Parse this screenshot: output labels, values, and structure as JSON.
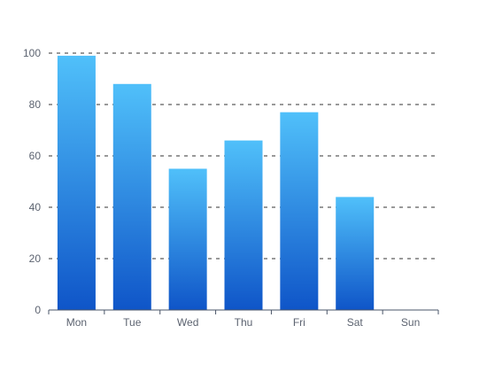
{
  "chart_data": {
    "type": "bar",
    "categories": [
      "Mon",
      "Tue",
      "Wed",
      "Thu",
      "Fri",
      "Sat",
      "Sun"
    ],
    "values": [
      99,
      88,
      55,
      66,
      77,
      44,
      0
    ],
    "title": "",
    "xlabel": "",
    "ylabel": "",
    "ylim": [
      0,
      100
    ],
    "yticks": [
      0,
      20,
      40,
      60,
      80,
      100
    ],
    "grid": "horizontal-dashed",
    "legend": "none",
    "colors": {
      "bar_top": "#50c0fa",
      "bar_bottom": "#0f55c8",
      "grid": "#333333",
      "axis": "#4a5568",
      "tick_text": "#5c6370"
    }
  }
}
